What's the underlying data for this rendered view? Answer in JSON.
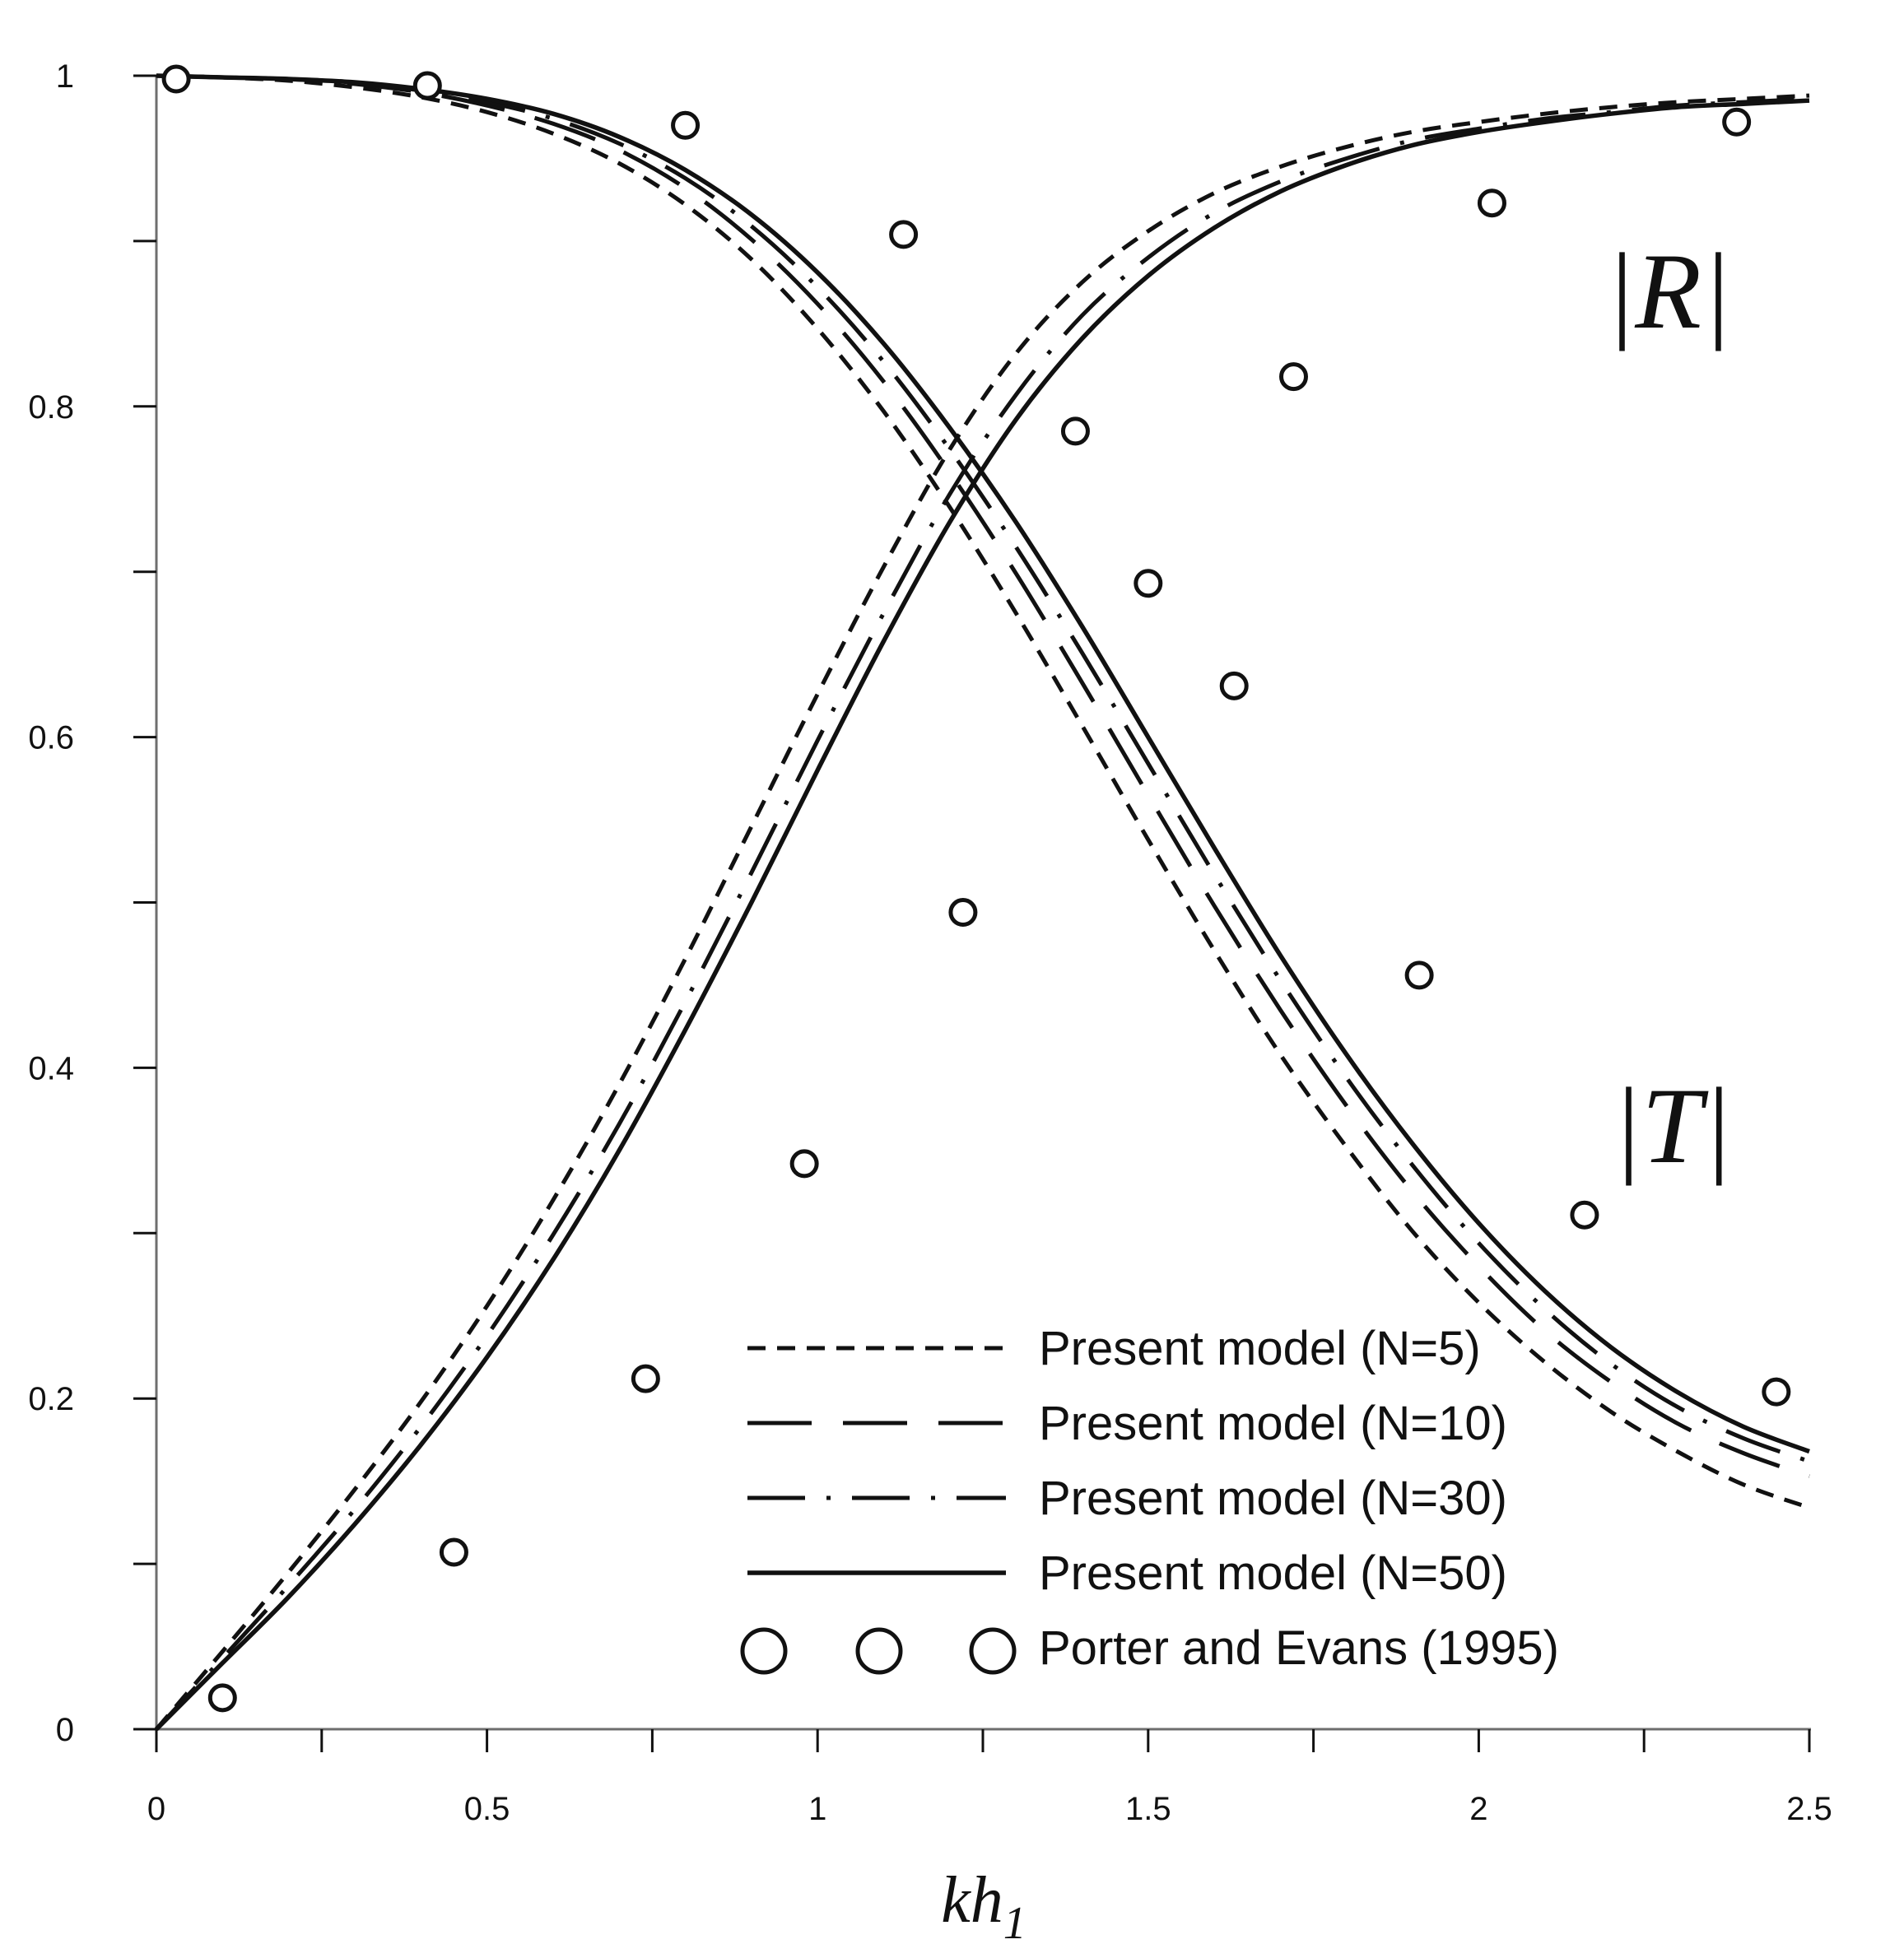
{
  "chart_data": {
    "type": "line",
    "title": "",
    "xlabel": "kh",
    "xlabel_sub": "1",
    "ylabel": "",
    "xlim": [
      0,
      2.5
    ],
    "ylim": [
      0,
      1
    ],
    "xticks": [
      0,
      0.5,
      1,
      1.5,
      2,
      2.5
    ],
    "xtick_labels": [
      "0",
      "0.5",
      "1",
      "1.5",
      "2",
      "2.5"
    ],
    "xminor": [
      0.25,
      0.75,
      1.25,
      1.75,
      2.25
    ],
    "yticks": [
      0,
      0.2,
      0.4,
      0.6,
      0.8,
      1
    ],
    "ytick_labels": [
      "0",
      "0.2",
      "0.4",
      "0.6",
      "0.8",
      "1"
    ],
    "yminor": [
      0.1,
      0.3,
      0.5,
      0.7,
      0.9
    ],
    "grid": false,
    "legend_position": "bottom-right",
    "curve_labels": {
      "R": "|R|",
      "T": "|T|"
    },
    "x": [
      0,
      0.1,
      0.2,
      0.3,
      0.4,
      0.5,
      0.6,
      0.7,
      0.8,
      0.9,
      1.0,
      1.1,
      1.2,
      1.3,
      1.4,
      1.5,
      1.6,
      1.7,
      1.8,
      1.9,
      2.0,
      2.1,
      2.2,
      2.3,
      2.4,
      2.5
    ],
    "series": [
      {
        "name": "Present model (N=5)",
        "dash": "short",
        "R": [
          1.0,
          0.999,
          0.997,
          0.993,
          0.987,
          0.978,
          0.965,
          0.947,
          0.922,
          0.889,
          0.847,
          0.797,
          0.739,
          0.675,
          0.607,
          0.538,
          0.471,
          0.408,
          0.352,
          0.301,
          0.258,
          0.222,
          0.192,
          0.168,
          0.148,
          0.134
        ],
        "T": [
          0.0,
          0.047,
          0.095,
          0.145,
          0.198,
          0.256,
          0.32,
          0.39,
          0.466,
          0.546,
          0.626,
          0.703,
          0.774,
          0.832,
          0.875,
          0.906,
          0.929,
          0.945,
          0.957,
          0.966,
          0.972,
          0.977,
          0.981,
          0.984,
          0.986,
          0.988
        ]
      },
      {
        "name": "Present model (N=10)",
        "dash": "long",
        "R": [
          1.0,
          0.999,
          0.998,
          0.995,
          0.99,
          0.982,
          0.971,
          0.955,
          0.932,
          0.901,
          0.862,
          0.815,
          0.76,
          0.699,
          0.633,
          0.565,
          0.498,
          0.435,
          0.377,
          0.325,
          0.28,
          0.241,
          0.21,
          0.185,
          0.167,
          0.153
        ]
      },
      {
        "name": "Present model (N=30)",
        "dash": "dashdot",
        "R": [
          1.0,
          0.999,
          0.998,
          0.996,
          0.991,
          0.984,
          0.974,
          0.959,
          0.938,
          0.909,
          0.872,
          0.827,
          0.774,
          0.715,
          0.651,
          0.584,
          0.517,
          0.453,
          0.394,
          0.341,
          0.294,
          0.254,
          0.221,
          0.195,
          0.176,
          0.162
        ],
        "T": [
          0.0,
          0.043,
          0.087,
          0.133,
          0.183,
          0.238,
          0.299,
          0.366,
          0.44,
          0.518,
          0.598,
          0.675,
          0.747,
          0.807,
          0.855,
          0.89,
          0.917,
          0.936,
          0.95,
          0.961,
          0.968,
          0.974,
          0.978,
          0.982,
          0.984,
          0.986
        ]
      },
      {
        "name": "Present model (N=50)",
        "dash": "solid",
        "R": [
          1.0,
          0.999,
          0.998,
          0.996,
          0.992,
          0.986,
          0.977,
          0.963,
          0.943,
          0.916,
          0.881,
          0.838,
          0.787,
          0.73,
          0.667,
          0.6,
          0.533,
          0.468,
          0.408,
          0.354,
          0.306,
          0.265,
          0.231,
          0.204,
          0.183,
          0.168
        ],
        "T": [
          0.0,
          0.04,
          0.08,
          0.124,
          0.172,
          0.225,
          0.284,
          0.35,
          0.423,
          0.5,
          0.58,
          0.658,
          0.73,
          0.792,
          0.841,
          0.879,
          0.908,
          0.93,
          0.946,
          0.958,
          0.966,
          0.972,
          0.977,
          0.981,
          0.983,
          0.985
        ]
      }
    ],
    "scatter": {
      "name": "Porter and Evans (1995)",
      "points": [
        [
          0.03,
          0.998
        ],
        [
          0.41,
          0.994
        ],
        [
          0.8,
          0.97
        ],
        [
          1.13,
          0.904
        ],
        [
          1.39,
          0.785
        ],
        [
          1.5,
          0.693
        ],
        [
          1.63,
          0.631
        ],
        [
          1.91,
          0.456
        ],
        [
          2.16,
          0.311
        ],
        [
          2.45,
          0.204
        ],
        [
          0.1,
          0.019
        ],
        [
          0.45,
          0.107
        ],
        [
          0.74,
          0.212
        ],
        [
          0.98,
          0.342
        ],
        [
          1.22,
          0.494
        ],
        [
          1.72,
          0.818
        ],
        [
          2.02,
          0.923
        ],
        [
          2.39,
          0.972
        ]
      ]
    }
  },
  "legend": [
    {
      "label": "Present model (N=5)",
      "dash": "short"
    },
    {
      "label": "Present model (N=10)",
      "dash": "long"
    },
    {
      "label": "Present model (N=30)",
      "dash": "dashdot"
    },
    {
      "label": "Present model (N=50)",
      "dash": "solid"
    },
    {
      "label": "Porter and Evans (1995)",
      "dash": "marker"
    }
  ]
}
